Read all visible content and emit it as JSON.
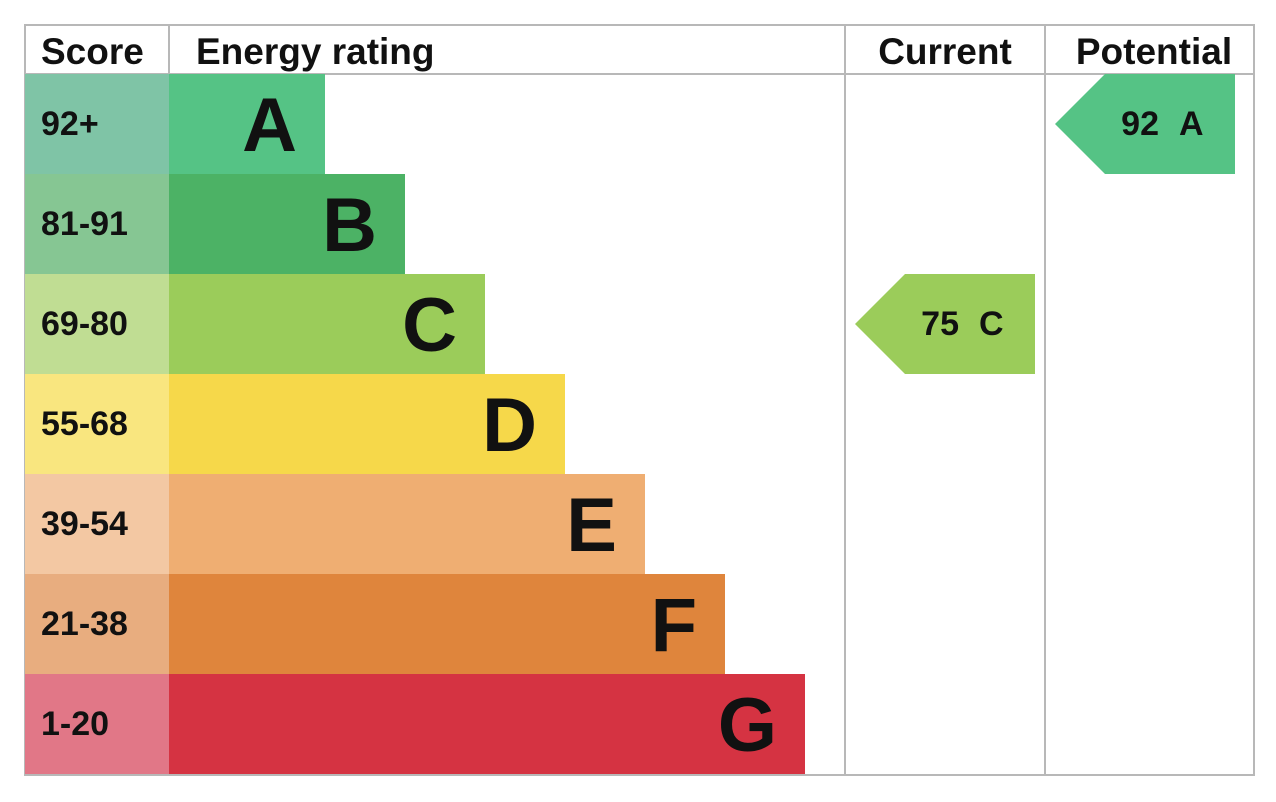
{
  "chart_data": {
    "type": "bar",
    "headers": {
      "score": "Score",
      "rating": "Energy rating",
      "current": "Current",
      "potential": "Potential"
    },
    "bands": [
      {
        "letter": "A",
        "range": "92+",
        "color": "#55c385",
        "score_color": "#7fc4a6"
      },
      {
        "letter": "B",
        "range": "81-91",
        "color": "#4cb265",
        "score_color": "#86c693"
      },
      {
        "letter": "C",
        "range": "69-80",
        "color": "#9bcc5a",
        "score_color": "#c0dd93"
      },
      {
        "letter": "D",
        "range": "55-68",
        "color": "#f6d84a",
        "score_color": "#f9e67f"
      },
      {
        "letter": "E",
        "range": "39-54",
        "color": "#efae72",
        "score_color": "#f3c8a3"
      },
      {
        "letter": "F",
        "range": "21-38",
        "color": "#df853c",
        "score_color": "#e8ad7f"
      },
      {
        "letter": "G",
        "range": "1-20",
        "color": "#d53342",
        "score_color": "#e17787"
      }
    ],
    "current": {
      "value": 75,
      "band": "C",
      "color": "#9bcc5a"
    },
    "potential": {
      "value": 92,
      "band": "A",
      "color": "#55c385"
    }
  }
}
